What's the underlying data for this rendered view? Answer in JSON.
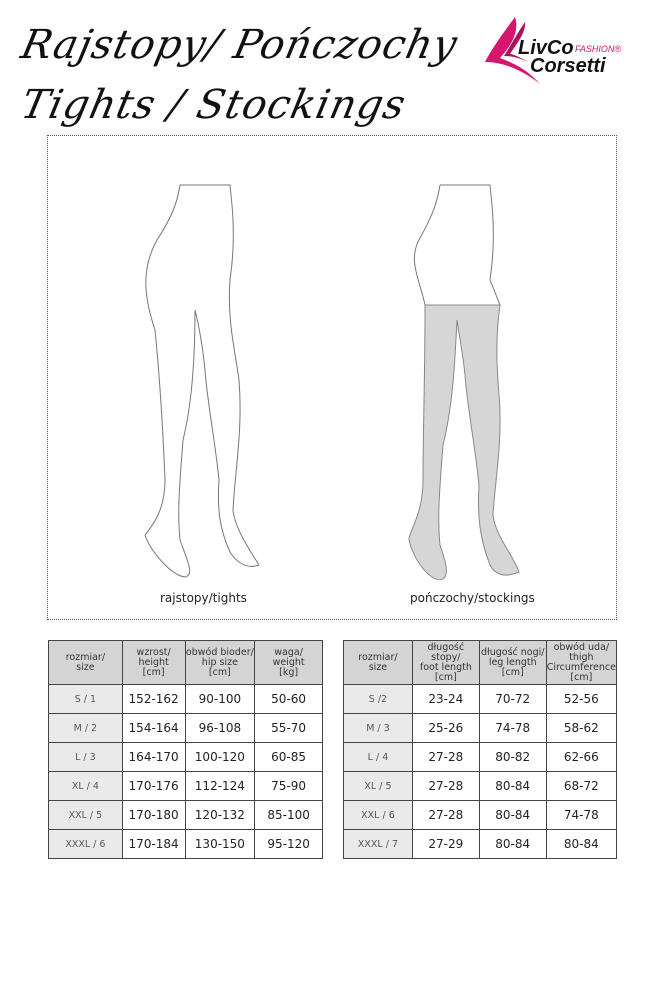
{
  "title": {
    "line1": "Rajstopy/ Pończochy",
    "line2": "Tights / Stockings"
  },
  "logo": {
    "brand1": "LivCo",
    "brand2": "Corsetti",
    "tag": "FASHION®",
    "accent": "#d6156c"
  },
  "figures": {
    "tights_caption": "rajstopy/tights",
    "stockings_caption": "pończochy/stockings"
  },
  "tights_table": {
    "headers": [
      [
        "rozmiar/",
        "size"
      ],
      [
        "wzrost/",
        "height",
        "[cm]"
      ],
      [
        "obwód bioder/",
        "hip size",
        "[cm]"
      ],
      [
        "waga/",
        "weight",
        "[kg]"
      ]
    ],
    "rows": [
      [
        "S / 1",
        "152-162",
        "90-100",
        "50-60"
      ],
      [
        "M / 2",
        "154-164",
        "96-108",
        "55-70"
      ],
      [
        "L / 3",
        "164-170",
        "100-120",
        "60-85"
      ],
      [
        "XL / 4",
        "170-176",
        "112-124",
        "75-90"
      ],
      [
        "XXL / 5",
        "170-180",
        "120-132",
        "85-100"
      ],
      [
        "XXXL / 6",
        "170-184",
        "130-150",
        "95-120"
      ]
    ]
  },
  "stockings_table": {
    "headers": [
      [
        "rozmiar/",
        "size"
      ],
      [
        "długość stopy/",
        "foot length",
        "[cm]"
      ],
      [
        "długość nogi/",
        "leg length",
        "[cm]"
      ],
      [
        "obwód uda/",
        "thigh",
        "Circumference",
        "[cm]"
      ]
    ],
    "rows": [
      [
        "S /2",
        "23-24",
        "70-72",
        "52-56"
      ],
      [
        "M / 3",
        "25-26",
        "74-78",
        "58-62"
      ],
      [
        "L / 4",
        "27-28",
        "80-82",
        "62-66"
      ],
      [
        "XL / 5",
        "27-28",
        "80-84",
        "68-72"
      ],
      [
        "XXL / 6",
        "27-28",
        "80-84",
        "74-78"
      ],
      [
        "XXXL / 7",
        "27-29",
        "80-84",
        "80-84"
      ]
    ]
  }
}
